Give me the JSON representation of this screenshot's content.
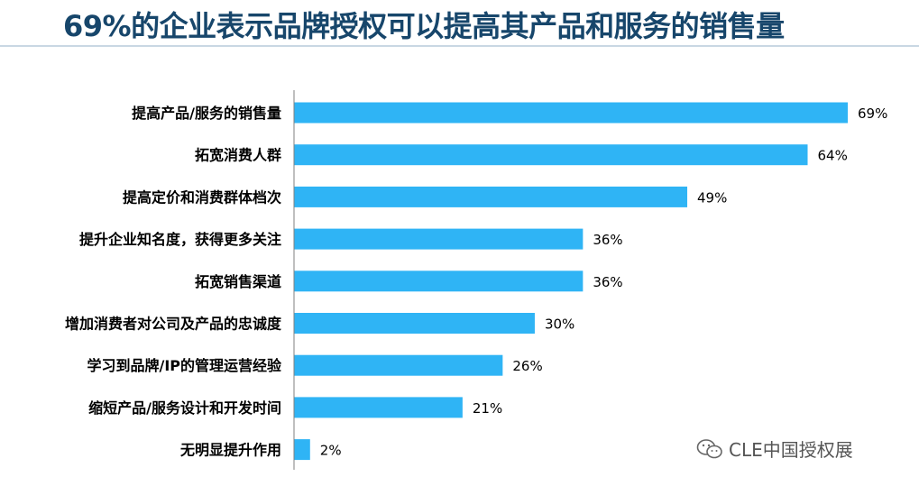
{
  "title": "69%的企业表示品牌授权可以提高其产品和服务的销售量",
  "watermark": {
    "text": "CLE中国授权展",
    "icon": "wechat-icon"
  },
  "colors": {
    "bar": "#2fb4f5",
    "title": "#17466b",
    "axis": "#7f7f7f",
    "label": "#000000"
  },
  "chart_data": {
    "type": "bar",
    "orientation": "horizontal",
    "title": "69%的企业表示品牌授权可以提高其产品和服务的销售量",
    "xlabel": "",
    "ylabel": "",
    "xlim": [
      0,
      69
    ],
    "grid": false,
    "categories": [
      "提高产品/服务的销售量",
      "拓宽消费人群",
      "提高定价和消费群体档次",
      "提升企业知名度，获得更多关注",
      "拓宽销售渠道",
      "增加消费者对公司及产品的忠诚度",
      "学习到品牌/IP的管理运营经验",
      "缩短产品/服务设计和开发时间",
      "无明显提升作用"
    ],
    "values": [
      69,
      64,
      49,
      36,
      36,
      30,
      26,
      21,
      2
    ],
    "value_labels": [
      "69%",
      "64%",
      "49%",
      "36%",
      "36%",
      "30%",
      "26%",
      "21%",
      "2%"
    ]
  }
}
